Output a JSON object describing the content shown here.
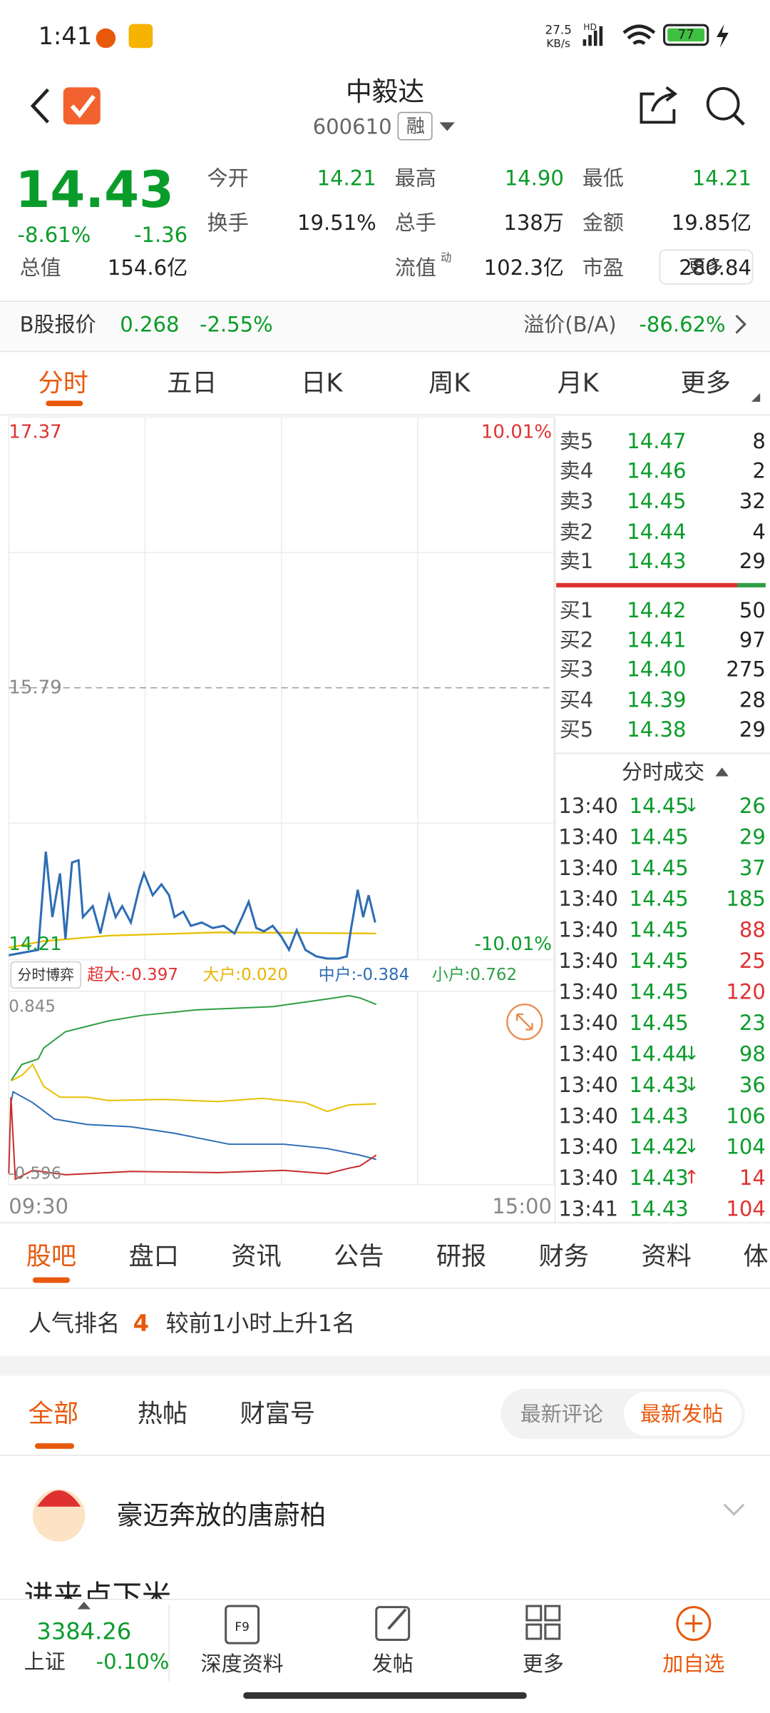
{
  "status_bar": {
    "time": "1:41",
    "speed": "27.5",
    "speed_unit": "KB/s",
    "network": "HD",
    "battery": "77"
  },
  "header": {
    "title": "中毅达",
    "code": "600610",
    "tag": "融"
  },
  "quote": {
    "price": "14.43",
    "change_pct": "-8.61%",
    "change": "-1.36",
    "total_value": {
      "label": "总值",
      "value": "154.6亿"
    },
    "stats": [
      {
        "label": "今开",
        "value": "14.21",
        "color": "#0a9c2a"
      },
      {
        "label": "最高",
        "value": "14.90",
        "color": "#0a9c2a"
      },
      {
        "label": "最低",
        "value": "14.21",
        "color": "#0a9c2a"
      },
      {
        "label": "换手",
        "value": "19.51%"
      },
      {
        "label": "总手",
        "value": "138万"
      },
      {
        "label": "金额",
        "value": "19.85亿"
      },
      {
        "label": "流值",
        "value": "102.3亿"
      },
      {
        "label": "市盈",
        "value": "280.84"
      }
    ],
    "pe_tag": "动",
    "more": "更多"
  },
  "b_share": {
    "label": "B股报价",
    "price": "0.268",
    "change_pct": "-2.55%",
    "premium_label": "溢价(B/A)",
    "premium": "-86.62%"
  },
  "chart_tabs": [
    "分时",
    "五日",
    "日K",
    "周K",
    "月K",
    "更多"
  ],
  "chart": {
    "high": "17.37",
    "high_pct": "10.01%",
    "prev_close": "15.79",
    "low": "14.21",
    "low_pct": "-10.01%",
    "flow_title": "分时博弈",
    "flows": [
      {
        "text": "超大:-0.397",
        "color": "#e03131"
      },
      {
        "text": "大户:0.020",
        "color": "#e6b400"
      },
      {
        "text": "中户:-0.384",
        "color": "#2e6db4"
      },
      {
        "text": "小户:0.762",
        "color": "#2f9e44"
      }
    ],
    "flow_max": "0.845",
    "flow_min": "-0.596",
    "start": "09:30",
    "end": "15:00"
  },
  "order_book": {
    "asks": [
      {
        "label": "卖5",
        "price": "14.47",
        "volume": "8"
      },
      {
        "label": "卖4",
        "price": "14.46",
        "volume": "2"
      },
      {
        "label": "卖3",
        "price": "14.45",
        "volume": "32"
      },
      {
        "label": "卖2",
        "price": "14.44",
        "volume": "4"
      },
      {
        "label": "卖1",
        "price": "14.43",
        "volume": "29"
      }
    ],
    "bids": [
      {
        "label": "买1",
        "price": "14.42",
        "volume": "50"
      },
      {
        "label": "买2",
        "price": "14.41",
        "volume": "97"
      },
      {
        "label": "买3",
        "price": "14.40",
        "volume": "275"
      },
      {
        "label": "买4",
        "price": "14.39",
        "volume": "28"
      },
      {
        "label": "买5",
        "price": "14.38",
        "volume": "29"
      }
    ]
  },
  "trades": {
    "title": "分时成交",
    "rows": [
      {
        "time": "13:40",
        "price": "14.45",
        "arrow": "↓",
        "arrow_color": "#0a9c2a",
        "volume": "26",
        "color": "#0a9c2a"
      },
      {
        "time": "13:40",
        "price": "14.45",
        "volume": "29",
        "color": "#0a9c2a"
      },
      {
        "time": "13:40",
        "price": "14.45",
        "volume": "37",
        "color": "#0a9c2a"
      },
      {
        "time": "13:40",
        "price": "14.45",
        "volume": "185",
        "color": "#0a9c2a"
      },
      {
        "time": "13:40",
        "price": "14.45",
        "volume": "88",
        "color": "#e03131"
      },
      {
        "time": "13:40",
        "price": "14.45",
        "volume": "25",
        "color": "#e03131"
      },
      {
        "time": "13:40",
        "price": "14.45",
        "volume": "120",
        "color": "#e03131"
      },
      {
        "time": "13:40",
        "price": "14.45",
        "volume": "23",
        "color": "#0a9c2a"
      },
      {
        "time": "13:40",
        "price": "14.44",
        "arrow": "↓",
        "arrow_color": "#0a9c2a",
        "volume": "98",
        "color": "#0a9c2a"
      },
      {
        "time": "13:40",
        "price": "14.43",
        "arrow": "↓",
        "arrow_color": "#0a9c2a",
        "volume": "36",
        "color": "#0a9c2a"
      },
      {
        "time": "13:40",
        "price": "14.43",
        "volume": "106",
        "color": "#0a9c2a"
      },
      {
        "time": "13:40",
        "price": "14.42",
        "arrow": "↓",
        "arrow_color": "#0a9c2a",
        "volume": "104",
        "color": "#0a9c2a"
      },
      {
        "time": "13:40",
        "price": "14.43",
        "arrow": "↑",
        "arrow_color": "#e03131",
        "volume": "14",
        "color": "#e03131"
      },
      {
        "time": "13:41",
        "price": "14.43",
        "volume": "104",
        "color": "#e03131"
      }
    ]
  },
  "nav_tabs": [
    "股吧",
    "盘口",
    "资讯",
    "公告",
    "研报",
    "财务",
    "资料",
    "体"
  ],
  "rank": {
    "label": "人气排名",
    "value": "4",
    "note": "较前1小时上升1名"
  },
  "sub_tabs": [
    "全部",
    "热帖",
    "财富号"
  ],
  "sort_options": [
    "最新评论",
    "最新发帖"
  ],
  "post": {
    "user": "豪迈奔放的唐蔚柏",
    "text": "进来点下米"
  },
  "bottom_bar": {
    "index_value": "3384.26",
    "index_name": "上证",
    "index_change": "-0.10%",
    "items": [
      "深度资料",
      "发帖",
      "更多",
      "加自选"
    ]
  }
}
